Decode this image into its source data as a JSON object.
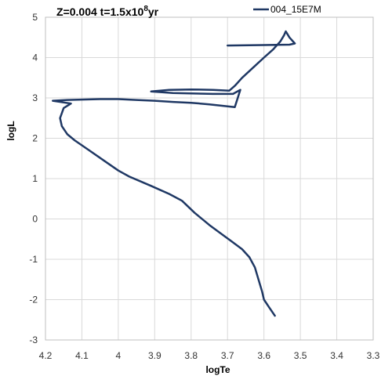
{
  "chart_data": {
    "type": "line",
    "title_main": "Z=0.004 t=1.5x10",
    "title_sup": "8",
    "title_end": "yr",
    "xlabel": "logTe",
    "ylabel": "logL",
    "xlim": [
      4.2,
      3.3
    ],
    "ylim": [
      -3,
      5
    ],
    "x_reversed": true,
    "x_ticks": [
      4.2,
      4.1,
      4.0,
      3.9,
      3.8,
      3.7,
      3.6,
      3.5,
      3.4,
      3.3
    ],
    "x_tick_labels": [
      "4.2",
      "4.1",
      "4",
      "3.9",
      "3.8",
      "3.7",
      "3.6",
      "3.5",
      "3.4",
      "3.3"
    ],
    "y_ticks": [
      -3,
      -2,
      -1,
      0,
      1,
      2,
      3,
      4,
      5
    ],
    "y_tick_labels": [
      "-3",
      "-2",
      "-1",
      "0",
      "1",
      "2",
      "3",
      "4",
      "5"
    ],
    "grid": "both",
    "legend_position": "top-right",
    "series": [
      {
        "name": "004_15E7M",
        "color": "#1f3864",
        "points": [
          [
            3.57,
            -2.4
          ],
          [
            3.585,
            -2.2
          ],
          [
            3.6,
            -2.0
          ],
          [
            3.605,
            -1.8
          ],
          [
            3.615,
            -1.5
          ],
          [
            3.625,
            -1.2
          ],
          [
            3.64,
            -0.95
          ],
          [
            3.66,
            -0.75
          ],
          [
            3.69,
            -0.55
          ],
          [
            3.72,
            -0.35
          ],
          [
            3.75,
            -0.15
          ],
          [
            3.79,
            0.15
          ],
          [
            3.825,
            0.45
          ],
          [
            3.86,
            0.62
          ],
          [
            3.91,
            0.82
          ],
          [
            3.97,
            1.05
          ],
          [
            4.0,
            1.2
          ],
          [
            4.04,
            1.45
          ],
          [
            4.08,
            1.7
          ],
          [
            4.12,
            1.95
          ],
          [
            4.14,
            2.1
          ],
          [
            4.155,
            2.3
          ],
          [
            4.16,
            2.5
          ],
          [
            4.15,
            2.75
          ],
          [
            4.13,
            2.86
          ],
          [
            4.18,
            2.93
          ],
          [
            4.14,
            2.95
          ],
          [
            4.1,
            2.96
          ],
          [
            4.05,
            2.97
          ],
          [
            4.0,
            2.97
          ],
          [
            3.95,
            2.95
          ],
          [
            3.9,
            2.93
          ],
          [
            3.85,
            2.9
          ],
          [
            3.8,
            2.88
          ],
          [
            3.75,
            2.84
          ],
          [
            3.71,
            2.8
          ],
          [
            3.68,
            2.77
          ],
          [
            3.665,
            3.2
          ],
          [
            3.685,
            3.1
          ],
          [
            3.74,
            3.1
          ],
          [
            3.85,
            3.12
          ],
          [
            3.91,
            3.16
          ],
          [
            3.86,
            3.2
          ],
          [
            3.8,
            3.21
          ],
          [
            3.74,
            3.2
          ],
          [
            3.695,
            3.18
          ],
          [
            3.68,
            3.3
          ],
          [
            3.66,
            3.5
          ],
          [
            3.63,
            3.75
          ],
          [
            3.6,
            4.0
          ],
          [
            3.575,
            4.2
          ],
          [
            3.555,
            4.4
          ],
          [
            3.545,
            4.55
          ],
          [
            3.54,
            4.65
          ],
          [
            3.53,
            4.5
          ],
          [
            3.515,
            4.35
          ],
          [
            3.53,
            4.32
          ],
          [
            3.6,
            4.31
          ],
          [
            3.7,
            4.3
          ]
        ]
      }
    ]
  }
}
